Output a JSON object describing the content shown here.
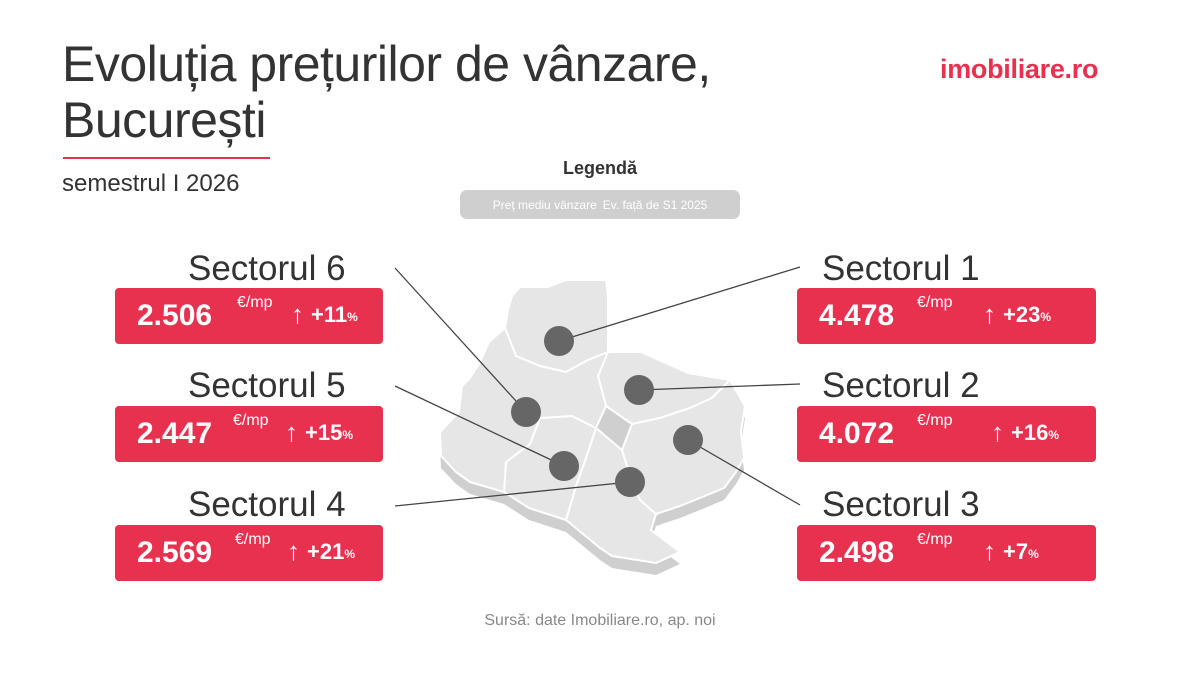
{
  "header": {
    "title_line1": "Evoluția prețurilor de vânzare,",
    "title_line2": "București",
    "subtitle": "semestrul I 2026",
    "logo": "imobiliare.ro"
  },
  "legend": {
    "title": "Legendă",
    "price_label": "Preț mediu vânzare",
    "change_label": "Ev. față de S1 2025"
  },
  "sectors": [
    {
      "name": "Sectorul 1",
      "price": "4.478",
      "unit": "€/mp",
      "arrow": "↑",
      "change": "+23",
      "pct": "%"
    },
    {
      "name": "Sectorul 2",
      "price": "4.072",
      "unit": "€/mp",
      "arrow": "↑",
      "change": "+16",
      "pct": "%"
    },
    {
      "name": "Sectorul 3",
      "price": "2.498",
      "unit": "€/mp",
      "arrow": "↑",
      "change": "+7",
      "pct": "%"
    },
    {
      "name": "Sectorul 4",
      "price": "2.569",
      "unit": "€/mp",
      "arrow": "↑",
      "change": "+21",
      "pct": "%"
    },
    {
      "name": "Sectorul 5",
      "price": "2.447",
      "unit": "€/mp",
      "arrow": "↑",
      "change": "+15",
      "pct": "%"
    },
    {
      "name": "Sectorul 6",
      "price": "2.506",
      "unit": "€/mp",
      "arrow": "↑",
      "change": "+11",
      "pct": "%"
    }
  ],
  "source": "Sursă: date Imobiliare.ro, ap. noi",
  "colors": {
    "accent": "#e8304f",
    "map_fill": "#e6e6e6",
    "map_shadow": "#cfcfcf",
    "marker": "#666666"
  }
}
